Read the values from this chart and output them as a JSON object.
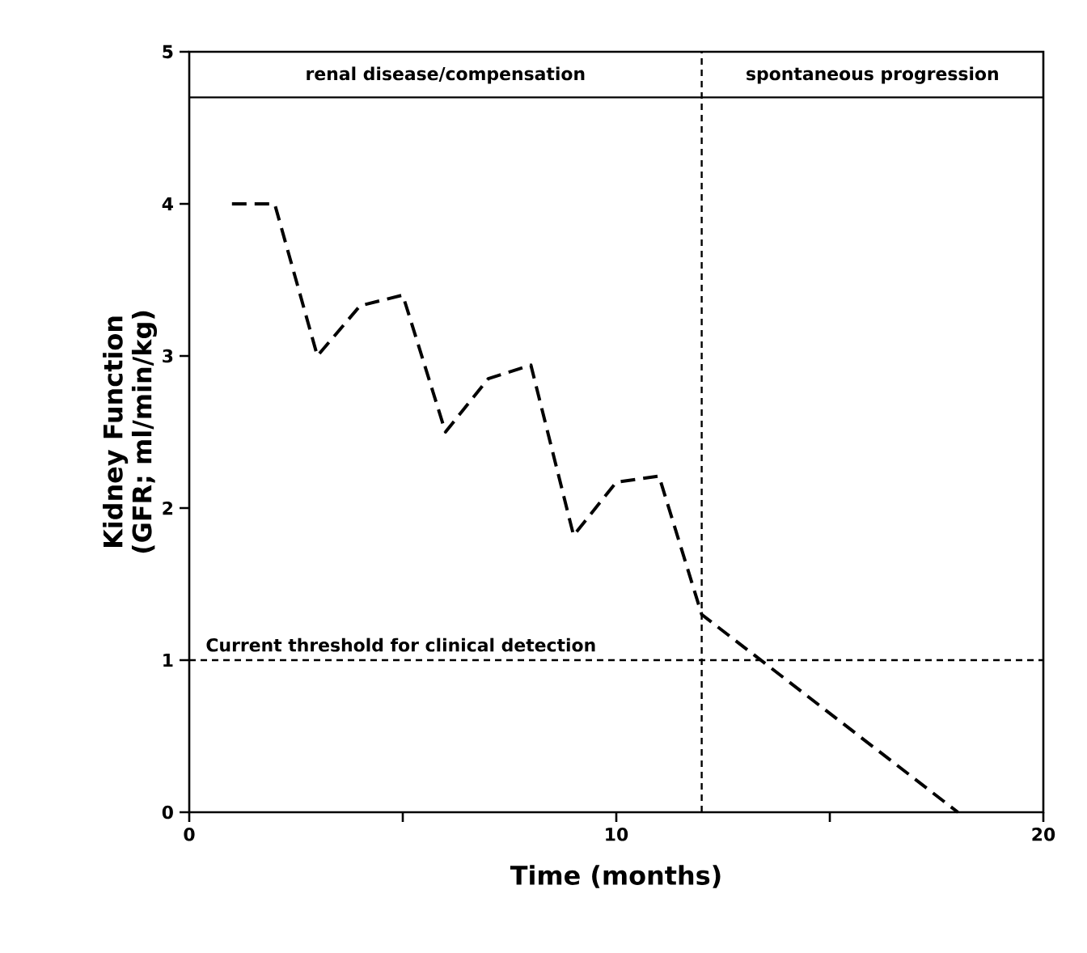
{
  "chart_data": {
    "type": "line",
    "xlabel": "Time (months)",
    "ylabel": "Kidney Function\n(GFR; ml/min/kg)",
    "xlim": [
      0,
      20
    ],
    "ylim": [
      0,
      5
    ],
    "xticks": [
      0,
      {
        "value": 5,
        "label": null
      },
      10,
      {
        "value": 15,
        "label": null
      },
      20
    ],
    "yticks": [
      0,
      1,
      2,
      3,
      4,
      5
    ],
    "series": [
      {
        "color": "#000000",
        "x": [
          1,
          2,
          3,
          4,
          5,
          6,
          7,
          8,
          9,
          10,
          11,
          12,
          18
        ],
        "values": [
          4.0,
          4.0,
          3.0,
          3.33,
          3.4,
          2.5,
          2.85,
          2.94,
          1.82,
          2.17,
          2.21,
          1.3,
          0
        ]
      }
    ],
    "line_style": "dashed",
    "marker": "none",
    "ref_lines": [
      {
        "axis": "x",
        "value": 12,
        "line_style": "dashed"
      },
      {
        "axis": "y",
        "value": 1,
        "label": "Current threshold for clinical detection",
        "line_style": "dashed"
      },
      {
        "axis": "y",
        "value": 4.7,
        "line_style": "solid"
      }
    ],
    "annotations": [
      "renal disease/compensation",
      "spontaneous progression"
    ]
  }
}
